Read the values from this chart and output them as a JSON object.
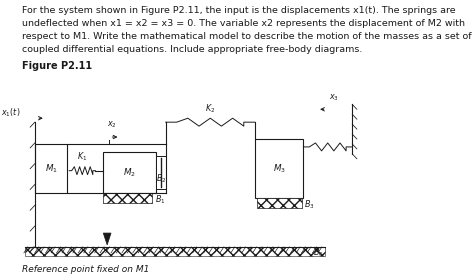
{
  "text_lines": [
    "For the system shown in Figure P2.11, the input is the displacements x1(t). The springs are",
    "undeflected when x1 = x2 = x3 = 0. The variable x2 represents the displacement of M2 with",
    "respect to M1. Write the mathematical model to describe the motion of the masses as a set of",
    "coupled differential equations. Include appropriate free-body diagrams."
  ],
  "figure_label": "Figure P2.11",
  "ref_label": "Reference point fixed on M1",
  "bg_color": "#ffffff",
  "text_color": "#1a1a1a",
  "diagram_color": "#1a1a1a",
  "text_fontsize": 6.8,
  "fig_fontsize": 7.0,
  "diagram_fontsize": 5.8
}
